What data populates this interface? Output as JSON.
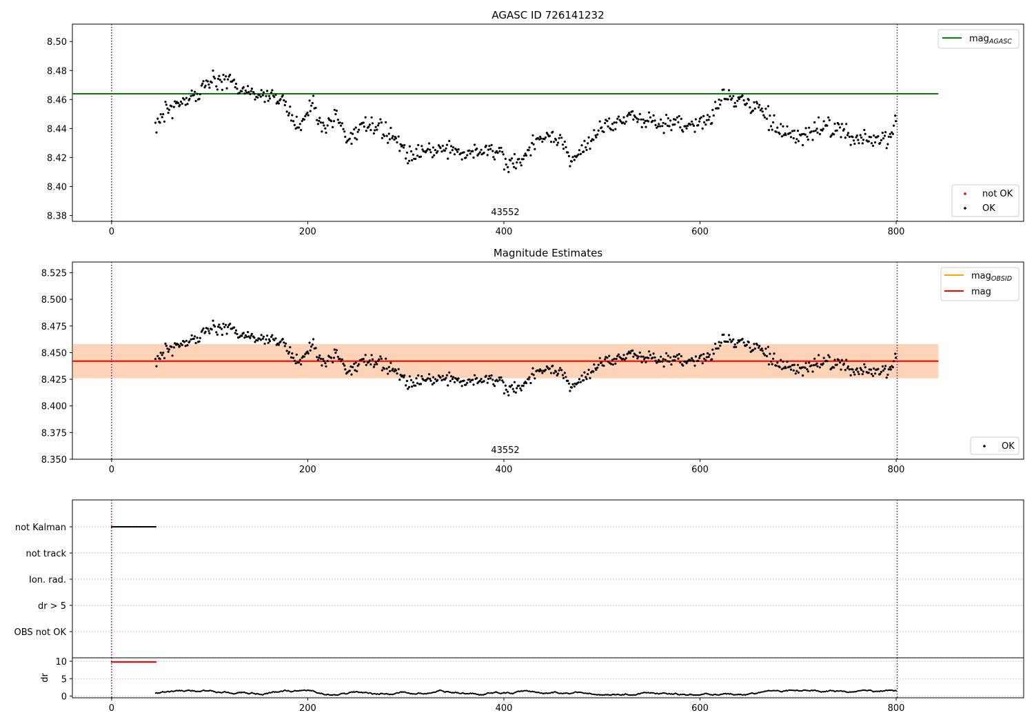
{
  "figure": {
    "panel1_title": "AGASC ID 726141232",
    "panel2_title": "Magnitude Estimates",
    "obsid_label": "43552"
  },
  "colors": {
    "ok_points": "#000000",
    "not_ok_points": "#ff0000",
    "mag_agasc": "#008000",
    "mag_obsid": "#ffa500",
    "mag": "#ff0000",
    "band_outer": "#ffc0cb",
    "band_inner": "#ffa500",
    "obs_boundary": "#800080",
    "flag_grid": "#b0b0b0"
  },
  "chart_data": [
    {
      "type": "scatter",
      "title": "AGASC ID 726141232",
      "xlim": [
        -40,
        930
      ],
      "ylim": [
        8.376,
        8.512
      ],
      "xticks": [
        0,
        200,
        400,
        600,
        800
      ],
      "yticks": [
        8.38,
        8.4,
        8.42,
        8.44,
        8.46,
        8.48,
        8.5
      ],
      "annotation": "43552",
      "observation_boundaries": [
        0,
        801
      ],
      "hlines": [
        {
          "name": "mag_AGASC",
          "y": 8.464,
          "x_range": [
            -40,
            843
          ]
        }
      ],
      "legends": [
        {
          "placement": "upper-right",
          "entries": [
            {
              "label_main": "mag",
              "label_sub": "AGASC",
              "kind": "line",
              "color": "#008000"
            }
          ]
        },
        {
          "placement": "lower-right",
          "entries": [
            {
              "label": "not OK",
              "kind": "point",
              "color": "#ff0000"
            },
            {
              "label": "OK",
              "kind": "point",
              "color": "#000000"
            }
          ]
        }
      ],
      "series": [
        {
          "name": "OK",
          "color": "#000000",
          "x_range": [
            45,
            800
          ],
          "count": 700,
          "trend_anchors": {
            "x": [
              45,
              60,
              80,
              100,
              120,
              140,
              160,
              175,
              190,
              205,
              215,
              230,
              240,
              260,
              285,
              300,
              330,
              360,
              390,
              405,
              420,
              440,
              460,
              470,
              490,
              510,
              530,
              560,
              590,
              610,
              625,
              640,
              660,
              680,
              700,
              730,
              760,
              790,
              800
            ],
            "y": [
              8.443,
              8.455,
              8.461,
              8.474,
              8.472,
              8.465,
              8.462,
              8.462,
              8.438,
              8.458,
              8.44,
              8.451,
              8.432,
              8.443,
              8.437,
              8.422,
              8.426,
              8.423,
              8.426,
              8.416,
              8.419,
              8.436,
              8.428,
              8.418,
              8.434,
              8.443,
              8.449,
              8.444,
              8.443,
              8.448,
              8.464,
              8.458,
              8.454,
              8.439,
              8.434,
              8.443,
              8.433,
              8.432,
              8.447
            ]
          },
          "noise_sd": 0.0042
        }
      ]
    },
    {
      "type": "scatter",
      "title": "Magnitude Estimates",
      "xlim": [
        -40,
        930
      ],
      "ylim": [
        8.35,
        8.535
      ],
      "xticks": [
        0,
        200,
        400,
        600,
        800
      ],
      "yticks": [
        8.35,
        8.375,
        8.4,
        8.425,
        8.45,
        8.475,
        8.5,
        8.525
      ],
      "annotation": "43552",
      "observation_boundaries": [
        0,
        801
      ],
      "hlines": [
        {
          "name": "mag_OBSID",
          "y": 8.442,
          "x_range": [
            -40,
            843
          ]
        },
        {
          "name": "mag",
          "y": 8.442,
          "x_range": [
            -40,
            843
          ]
        }
      ],
      "bands": [
        {
          "name": "mag_sigma_outer",
          "y_low": 8.426,
          "y_high": 8.458,
          "x_range": [
            -40,
            843
          ],
          "color": "#ffc0cb"
        },
        {
          "name": "mag_obsid_sigma",
          "y_low": 8.426,
          "y_high": 8.458,
          "x_range": [
            -40,
            843
          ],
          "color": "#ffa500"
        }
      ],
      "legends": [
        {
          "placement": "upper-right",
          "entries": [
            {
              "label_main": "mag",
              "label_sub": "OBSID",
              "kind": "line",
              "color": "#ffa500"
            },
            {
              "label": "mag",
              "kind": "line",
              "color": "#ff0000"
            }
          ]
        },
        {
          "placement": "lower-right",
          "entries": [
            {
              "label": "OK",
              "kind": "point",
              "color": "#000000"
            }
          ]
        }
      ],
      "series": [
        {
          "name": "OK",
          "color": "#000000",
          "same_as_panel": 0
        }
      ]
    },
    {
      "type": "scatter",
      "title": "",
      "xlim": [
        -40,
        930
      ],
      "categories": [
        "not Kalman",
        "not track",
        "Ion. rad.",
        "dr > 5",
        "OBS not OK"
      ],
      "observation_boundaries": [
        0,
        801
      ],
      "series": [
        {
          "name": "not Kalman",
          "color": "#000000",
          "x_range": [
            0,
            45
          ],
          "step": 1
        }
      ]
    },
    {
      "type": "scatter",
      "title": "",
      "ylabel": "dr",
      "xlim": [
        -40,
        930
      ],
      "ylim": [
        -0.5,
        11
      ],
      "xticks": [
        0,
        200,
        400,
        600,
        800
      ],
      "yticks": [
        0,
        5,
        10
      ],
      "observation_boundaries": [
        0,
        801
      ],
      "series": [
        {
          "name": "dr > 5",
          "color": "#ff0000",
          "x_range": [
            0,
            45
          ],
          "y": 9.8
        },
        {
          "name": "dr",
          "color": "#000000",
          "x_range": [
            45,
            800
          ],
          "y_range": [
            0.3,
            1.7
          ]
        }
      ]
    }
  ]
}
